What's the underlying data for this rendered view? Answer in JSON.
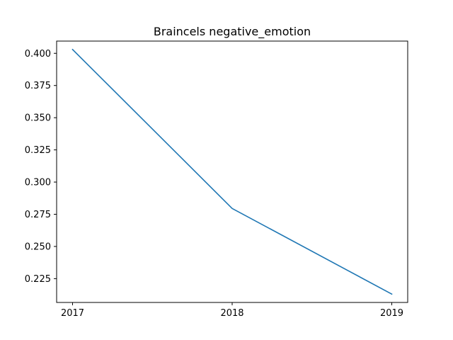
{
  "chart_data": {
    "type": "line",
    "title": "Braincels negative_emotion",
    "xlabel": "",
    "ylabel": "",
    "x": [
      "2017",
      "2018",
      "2019"
    ],
    "series": [
      {
        "values": [
          0.403,
          0.2795,
          0.213
        ],
        "color": "#1f77b4"
      }
    ],
    "xticks": [
      "2017",
      "2018",
      "2019"
    ],
    "yticks": [
      "0.225",
      "0.250",
      "0.275",
      "0.300",
      "0.325",
      "0.350",
      "0.375",
      "0.400"
    ],
    "ylim": [
      0.2065,
      0.4095
    ],
    "grid": false,
    "legend": "none"
  }
}
